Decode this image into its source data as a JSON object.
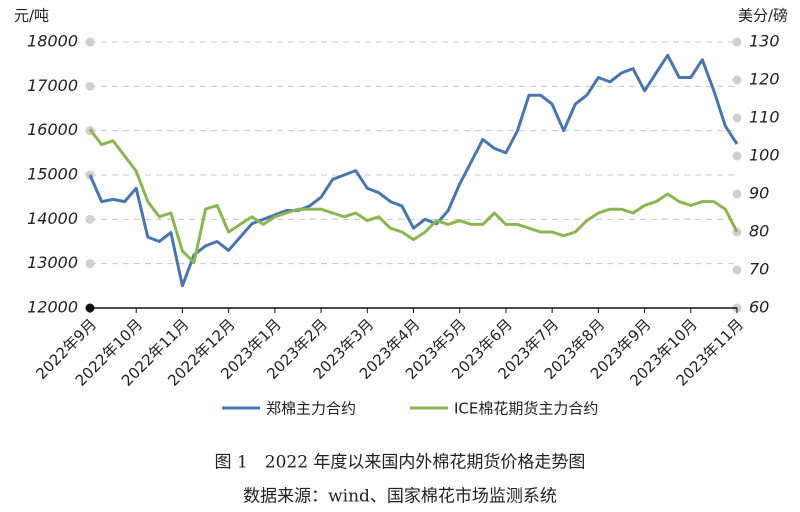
{
  "chart_data": {
    "type": "line",
    "y_label": "元/吨",
    "y2_label": "美分/磅",
    "title": "图 1　2022 年度以来国内外棉花期货价格走势图",
    "source": "数据来源：wind、国家棉花市场监测系统",
    "categories": [
      "2022年9月",
      null,
      null,
      null,
      "2022年10月",
      null,
      null,
      null,
      "2022年11月",
      null,
      null,
      null,
      "2022年12月",
      null,
      null,
      null,
      "2023年1月",
      null,
      null,
      null,
      "2023年2月",
      null,
      null,
      null,
      "2023年3月",
      null,
      null,
      null,
      "2023年4月",
      null,
      null,
      null,
      "2023年5月",
      null,
      null,
      null,
      "2023年6月",
      null,
      null,
      null,
      "2023年7月",
      null,
      null,
      null,
      "2023年8月",
      null,
      null,
      null,
      "2023年9月",
      null,
      null,
      null,
      "2023年10月",
      null,
      null,
      null,
      "2023年11月"
    ],
    "series": [
      {
        "name": "郑棉主力合约",
        "color": "#4a76ad",
        "values": [
          15000,
          14400,
          14450,
          14400,
          14700,
          13600,
          13500,
          13700,
          12500,
          13200,
          13400,
          13500,
          13300,
          13600,
          13900,
          14000,
          14100,
          14200,
          14200,
          14300,
          14500,
          14900,
          15000,
          15100,
          14700,
          14600,
          14400,
          14300,
          13800,
          14000,
          13900,
          14200,
          14800,
          15300,
          15800,
          15600,
          15500,
          16000,
          16800,
          16800,
          16600,
          16000,
          16600,
          16800,
          17200,
          17100,
          17300,
          17400,
          16900,
          17300,
          17700,
          17200,
          17200,
          17600,
          16900,
          16100,
          15700
        ]
      },
      {
        "name": "ICE棉花期货主力合约",
        "color": "#8db553",
        "axis": "y2",
        "values": [
          107,
          103,
          104,
          100,
          96,
          88,
          84,
          85,
          75,
          72,
          86,
          87,
          80,
          82,
          84,
          82,
          84,
          85,
          86,
          86,
          86,
          85,
          84,
          85,
          83,
          84,
          81,
          80,
          78,
          80,
          83,
          82,
          83,
          82,
          82,
          85,
          82,
          82,
          81,
          80,
          80,
          79,
          80,
          83,
          85,
          86,
          86,
          85,
          87,
          88,
          90,
          88,
          87,
          88,
          88,
          86,
          80
        ]
      }
    ],
    "ylim": [
      12000,
      18000
    ],
    "yticks": [
      12000,
      13000,
      14000,
      15000,
      16000,
      17000,
      18000
    ],
    "y2lim": [
      60,
      130
    ],
    "y2ticks": [
      60,
      70,
      80,
      90,
      100,
      110,
      120,
      130
    ],
    "grid": true
  }
}
